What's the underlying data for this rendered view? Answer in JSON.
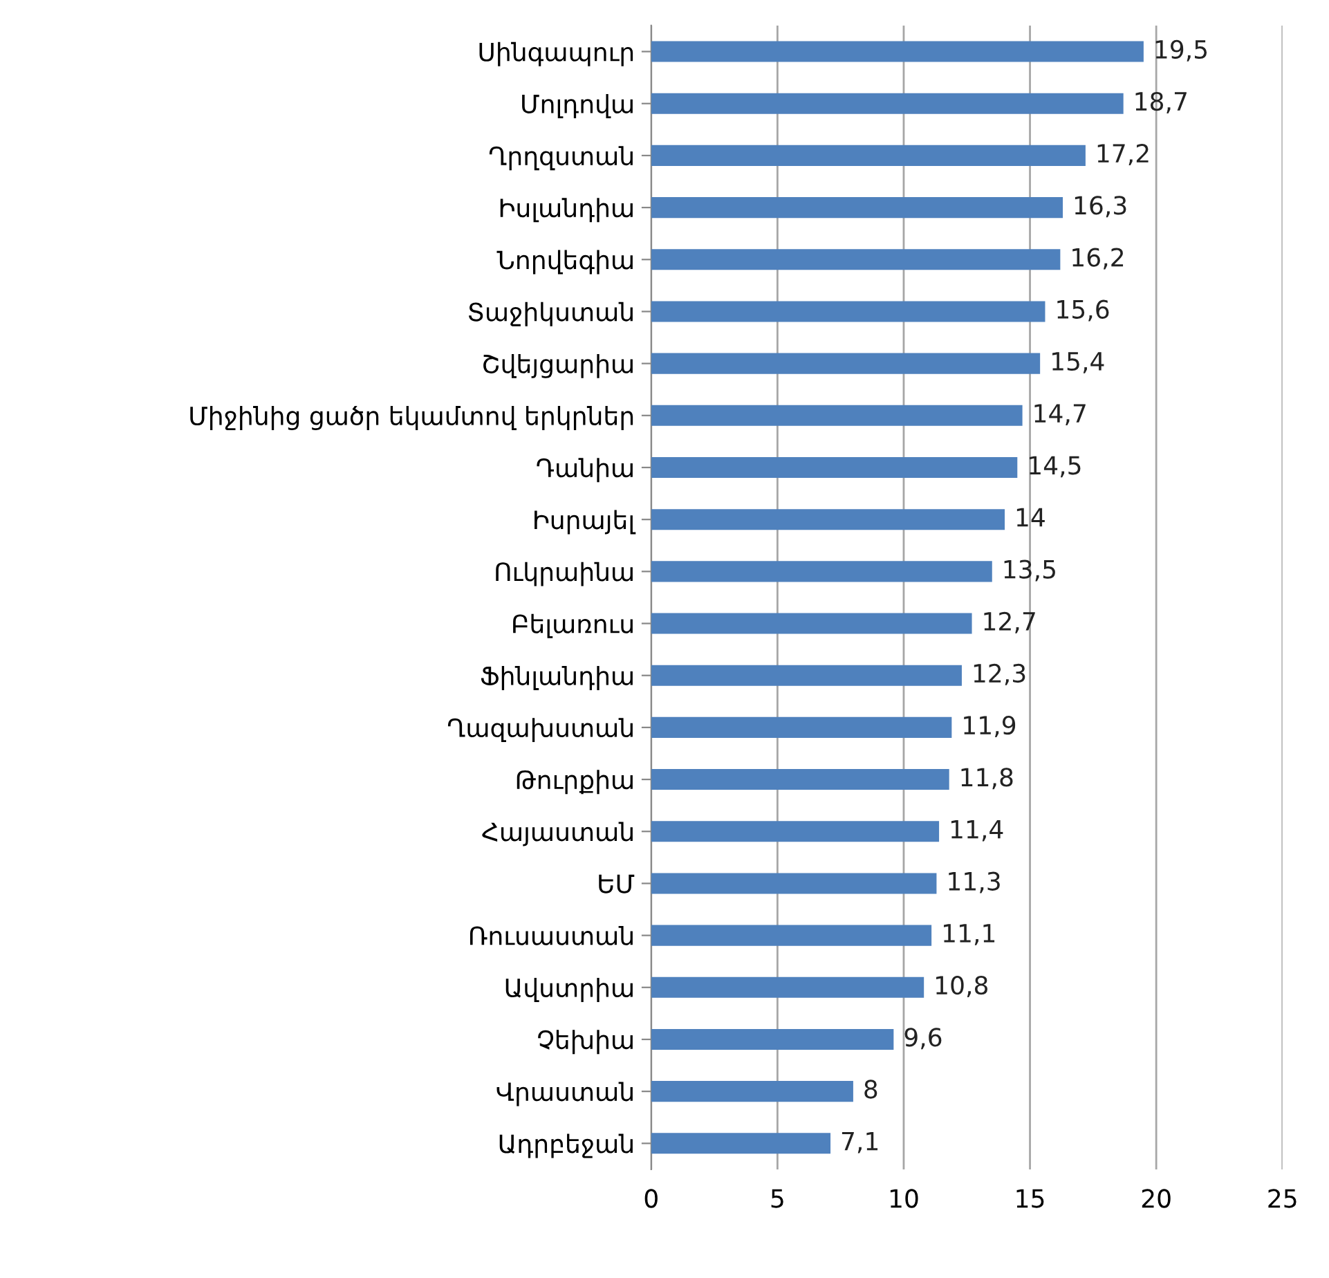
{
  "chart_data": {
    "type": "bar",
    "orientation": "horizontal",
    "categories": [
      "Սինգապուր",
      "Մոլդովա",
      "Ղրղզստան",
      "Իսլանդիա",
      "Նորվեգիա",
      "Տաջիկստան",
      "Շվեյցարիա",
      "Միջինից ցածր եկամտով երկրներ",
      "Դանիա",
      "Իսրայել",
      "Ուկրաինա",
      "Բելառուս",
      "Ֆինլանդիա",
      "Ղազախստան",
      "Թուրքիա",
      "Հայաստան",
      "ԵՄ",
      "Ռուսաստան",
      "Ավստրիա",
      "Չեխիա",
      "Վրաստան",
      "Ադրբեջան"
    ],
    "values": [
      19.5,
      18.7,
      17.2,
      16.3,
      16.2,
      15.6,
      15.4,
      14.7,
      14.5,
      14,
      13.5,
      12.7,
      12.3,
      11.9,
      11.8,
      11.4,
      11.3,
      11.1,
      10.8,
      9.6,
      8,
      7.1
    ],
    "value_labels": [
      "19,5",
      "18,7",
      "17,2",
      "16,3",
      "16,2",
      "15,6",
      "15,4",
      "14,7",
      "14,5",
      "14",
      "13,5",
      "12,7",
      "12,3",
      "11,9",
      "11,8",
      "11,4",
      "11,3",
      "11,1",
      "10,8",
      "9,6",
      "8",
      "7,1"
    ],
    "color": "#4f81bd",
    "xlim": [
      0,
      25
    ],
    "xticks": [
      0,
      5,
      10,
      15,
      20,
      25
    ],
    "grid": "x"
  }
}
